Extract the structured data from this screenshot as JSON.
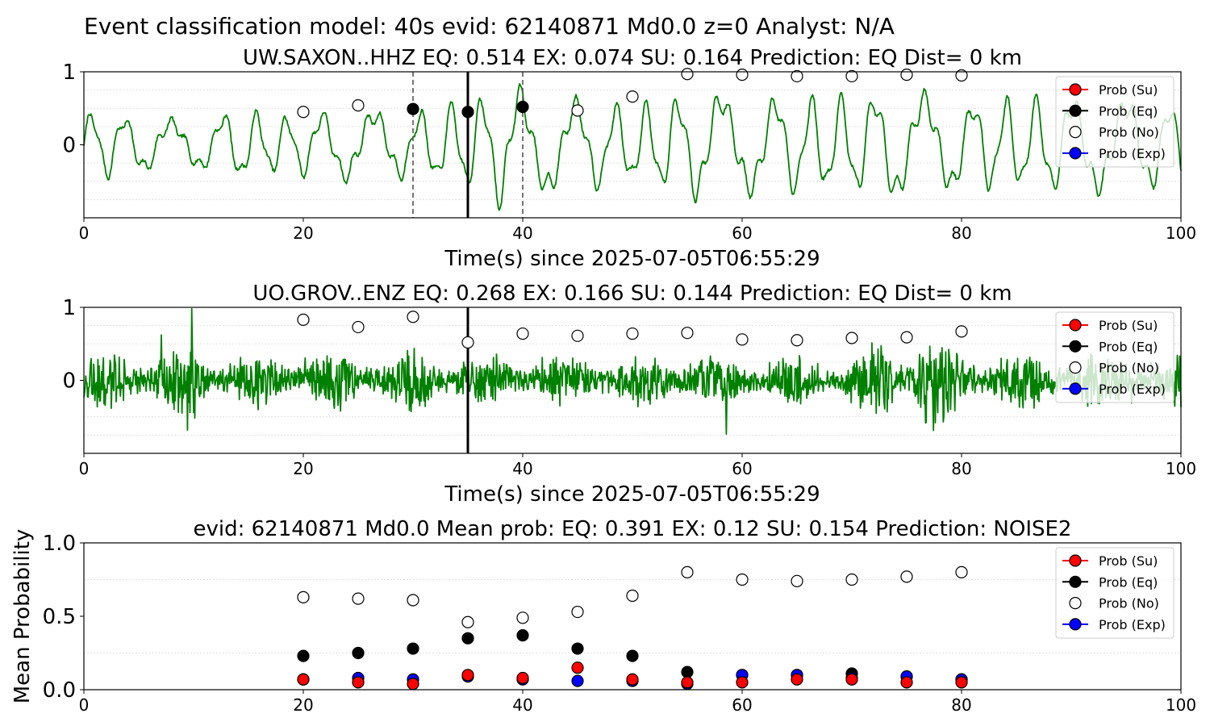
{
  "figure_title": "Event classification model: 40s evid: 62140871 Md0.0 z=0 Analyst: N/A",
  "legend_labels": [
    "Prob (Su)",
    "Prob (Eq)",
    "Prob (No)",
    "Prob (Exp)"
  ],
  "colors": {
    "su": "#ff0000",
    "eq": "#000000",
    "no": "#ffffff",
    "exp": "#0000ff",
    "waveform": "#008000"
  },
  "chart_data": [
    {
      "type": "line",
      "title": "UW.SAXON..HHZ   EQ: 0.514  EX: 0.074  SU: 0.164   Prediction: EQ    Dist= 0 km",
      "xlabel": "Time(s) since 2025-07-05T06:55:29",
      "ylabel": "",
      "xlim": [
        0,
        100
      ],
      "ylim": [
        -1,
        1
      ],
      "xticks": [
        0,
        20,
        40,
        60,
        80,
        100
      ],
      "yticks": [
        0,
        1
      ],
      "grid_y": [
        -0.75,
        -0.5,
        -0.25,
        0.25,
        0.5,
        0.75
      ],
      "legend": "top-right",
      "waveform": {
        "name": "",
        "description": "seismogram trace",
        "amplitude_envelope": [
          [
            0,
            0.55
          ],
          [
            4,
            0.45
          ],
          [
            10,
            0.35
          ],
          [
            14,
            0.55
          ],
          [
            18,
            0.45
          ],
          [
            24,
            0.55
          ],
          [
            30,
            0.5
          ],
          [
            36,
            0.75
          ],
          [
            38,
            0.95
          ],
          [
            42,
            0.75
          ],
          [
            50,
            0.6
          ],
          [
            56,
            0.85
          ],
          [
            60,
            0.75
          ],
          [
            70,
            0.75
          ],
          [
            74,
            0.85
          ],
          [
            80,
            0.7
          ],
          [
            90,
            0.75
          ],
          [
            100,
            0.65
          ]
        ]
      },
      "vlines": [
        {
          "x": 30,
          "style": "dashed"
        },
        {
          "x": 35,
          "style": "solid"
        },
        {
          "x": 40,
          "style": "dashed"
        }
      ],
      "series": [
        {
          "name": "Prob (No)",
          "x": [
            20,
            25,
            30,
            35,
            40,
            45,
            50,
            55,
            60,
            65,
            70,
            75,
            80
          ],
          "y": [
            0.45,
            0.54,
            null,
            null,
            null,
            0.47,
            0.66,
            0.97,
            0.96,
            0.94,
            0.94,
            0.96,
            0.95
          ]
        },
        {
          "name": "Prob (Eq)",
          "x": [
            30,
            35,
            40
          ],
          "y": [
            0.49,
            0.45,
            0.52
          ]
        }
      ]
    },
    {
      "type": "line",
      "title": "UO.GROV..ENZ   EQ: 0.268  EX: 0.166  SU: 0.144   Prediction: EQ    Dist= 0 km",
      "xlabel": "Time(s) since 2025-07-05T06:55:29",
      "ylabel": "",
      "xlim": [
        0,
        100
      ],
      "ylim": [
        -1,
        1
      ],
      "xticks": [
        0,
        20,
        40,
        60,
        80,
        100
      ],
      "yticks": [
        0,
        1
      ],
      "grid_y": [
        -0.75,
        -0.5,
        -0.25,
        0.25,
        0.5,
        0.75
      ],
      "legend": "top-right",
      "waveform": {
        "name": "",
        "description": "noisy seismogram trace",
        "amplitude_envelope": [
          [
            0,
            0.35
          ],
          [
            9,
            0.4
          ],
          [
            10,
            0.7
          ],
          [
            11,
            0.35
          ],
          [
            30,
            0.35
          ],
          [
            40,
            0.3
          ],
          [
            70,
            0.3
          ],
          [
            76,
            0.7
          ],
          [
            77,
            0.95
          ],
          [
            79,
            0.4
          ],
          [
            100,
            0.3
          ]
        ]
      },
      "vlines": [
        {
          "x": 35,
          "style": "solid"
        }
      ],
      "series": [
        {
          "name": "Prob (No)",
          "x": [
            20,
            25,
            30,
            35,
            40,
            45,
            50,
            55,
            60,
            65,
            70,
            75,
            80
          ],
          "y": [
            0.83,
            0.73,
            0.87,
            0.52,
            0.64,
            0.61,
            0.64,
            0.65,
            0.56,
            0.55,
            0.58,
            0.59,
            0.67
          ]
        }
      ]
    },
    {
      "type": "scatter",
      "title": "evid: 62140871  Md0.0   Mean prob:   EQ: 0.391  EX: 0.12  SU: 0.154   Prediction: NOISE2",
      "xlabel": "",
      "ylabel": "Mean Probability",
      "xlim": [
        0,
        100
      ],
      "ylim": [
        0,
        1
      ],
      "xticks": [
        0,
        20,
        40,
        60,
        80,
        100
      ],
      "yticks": [
        0.0,
        0.5,
        1.0
      ],
      "grid_y": [
        0.25,
        0.75
      ],
      "legend": "top-right",
      "x": [
        20,
        25,
        30,
        35,
        40,
        45,
        50,
        55,
        60,
        65,
        70,
        75,
        80
      ],
      "series": [
        {
          "name": "Prob (No)",
          "values": [
            0.63,
            0.62,
            0.61,
            0.46,
            0.49,
            0.53,
            0.64,
            0.8,
            0.75,
            0.74,
            0.75,
            0.77,
            0.8
          ]
        },
        {
          "name": "Prob (Eq)",
          "values": [
            0.23,
            0.25,
            0.28,
            0.35,
            0.37,
            0.28,
            0.23,
            0.12,
            0.1,
            0.1,
            0.11,
            0.09,
            0.07
          ]
        },
        {
          "name": "Prob (Exp)",
          "values": [
            0.07,
            0.08,
            0.07,
            0.09,
            0.07,
            0.06,
            0.06,
            0.04,
            0.1,
            0.1,
            0.08,
            0.09,
            0.07
          ]
        },
        {
          "name": "Prob (Su)",
          "values": [
            0.07,
            0.05,
            0.04,
            0.1,
            0.08,
            0.15,
            0.07,
            0.05,
            0.05,
            0.07,
            0.07,
            0.05,
            0.05
          ]
        }
      ]
    }
  ]
}
